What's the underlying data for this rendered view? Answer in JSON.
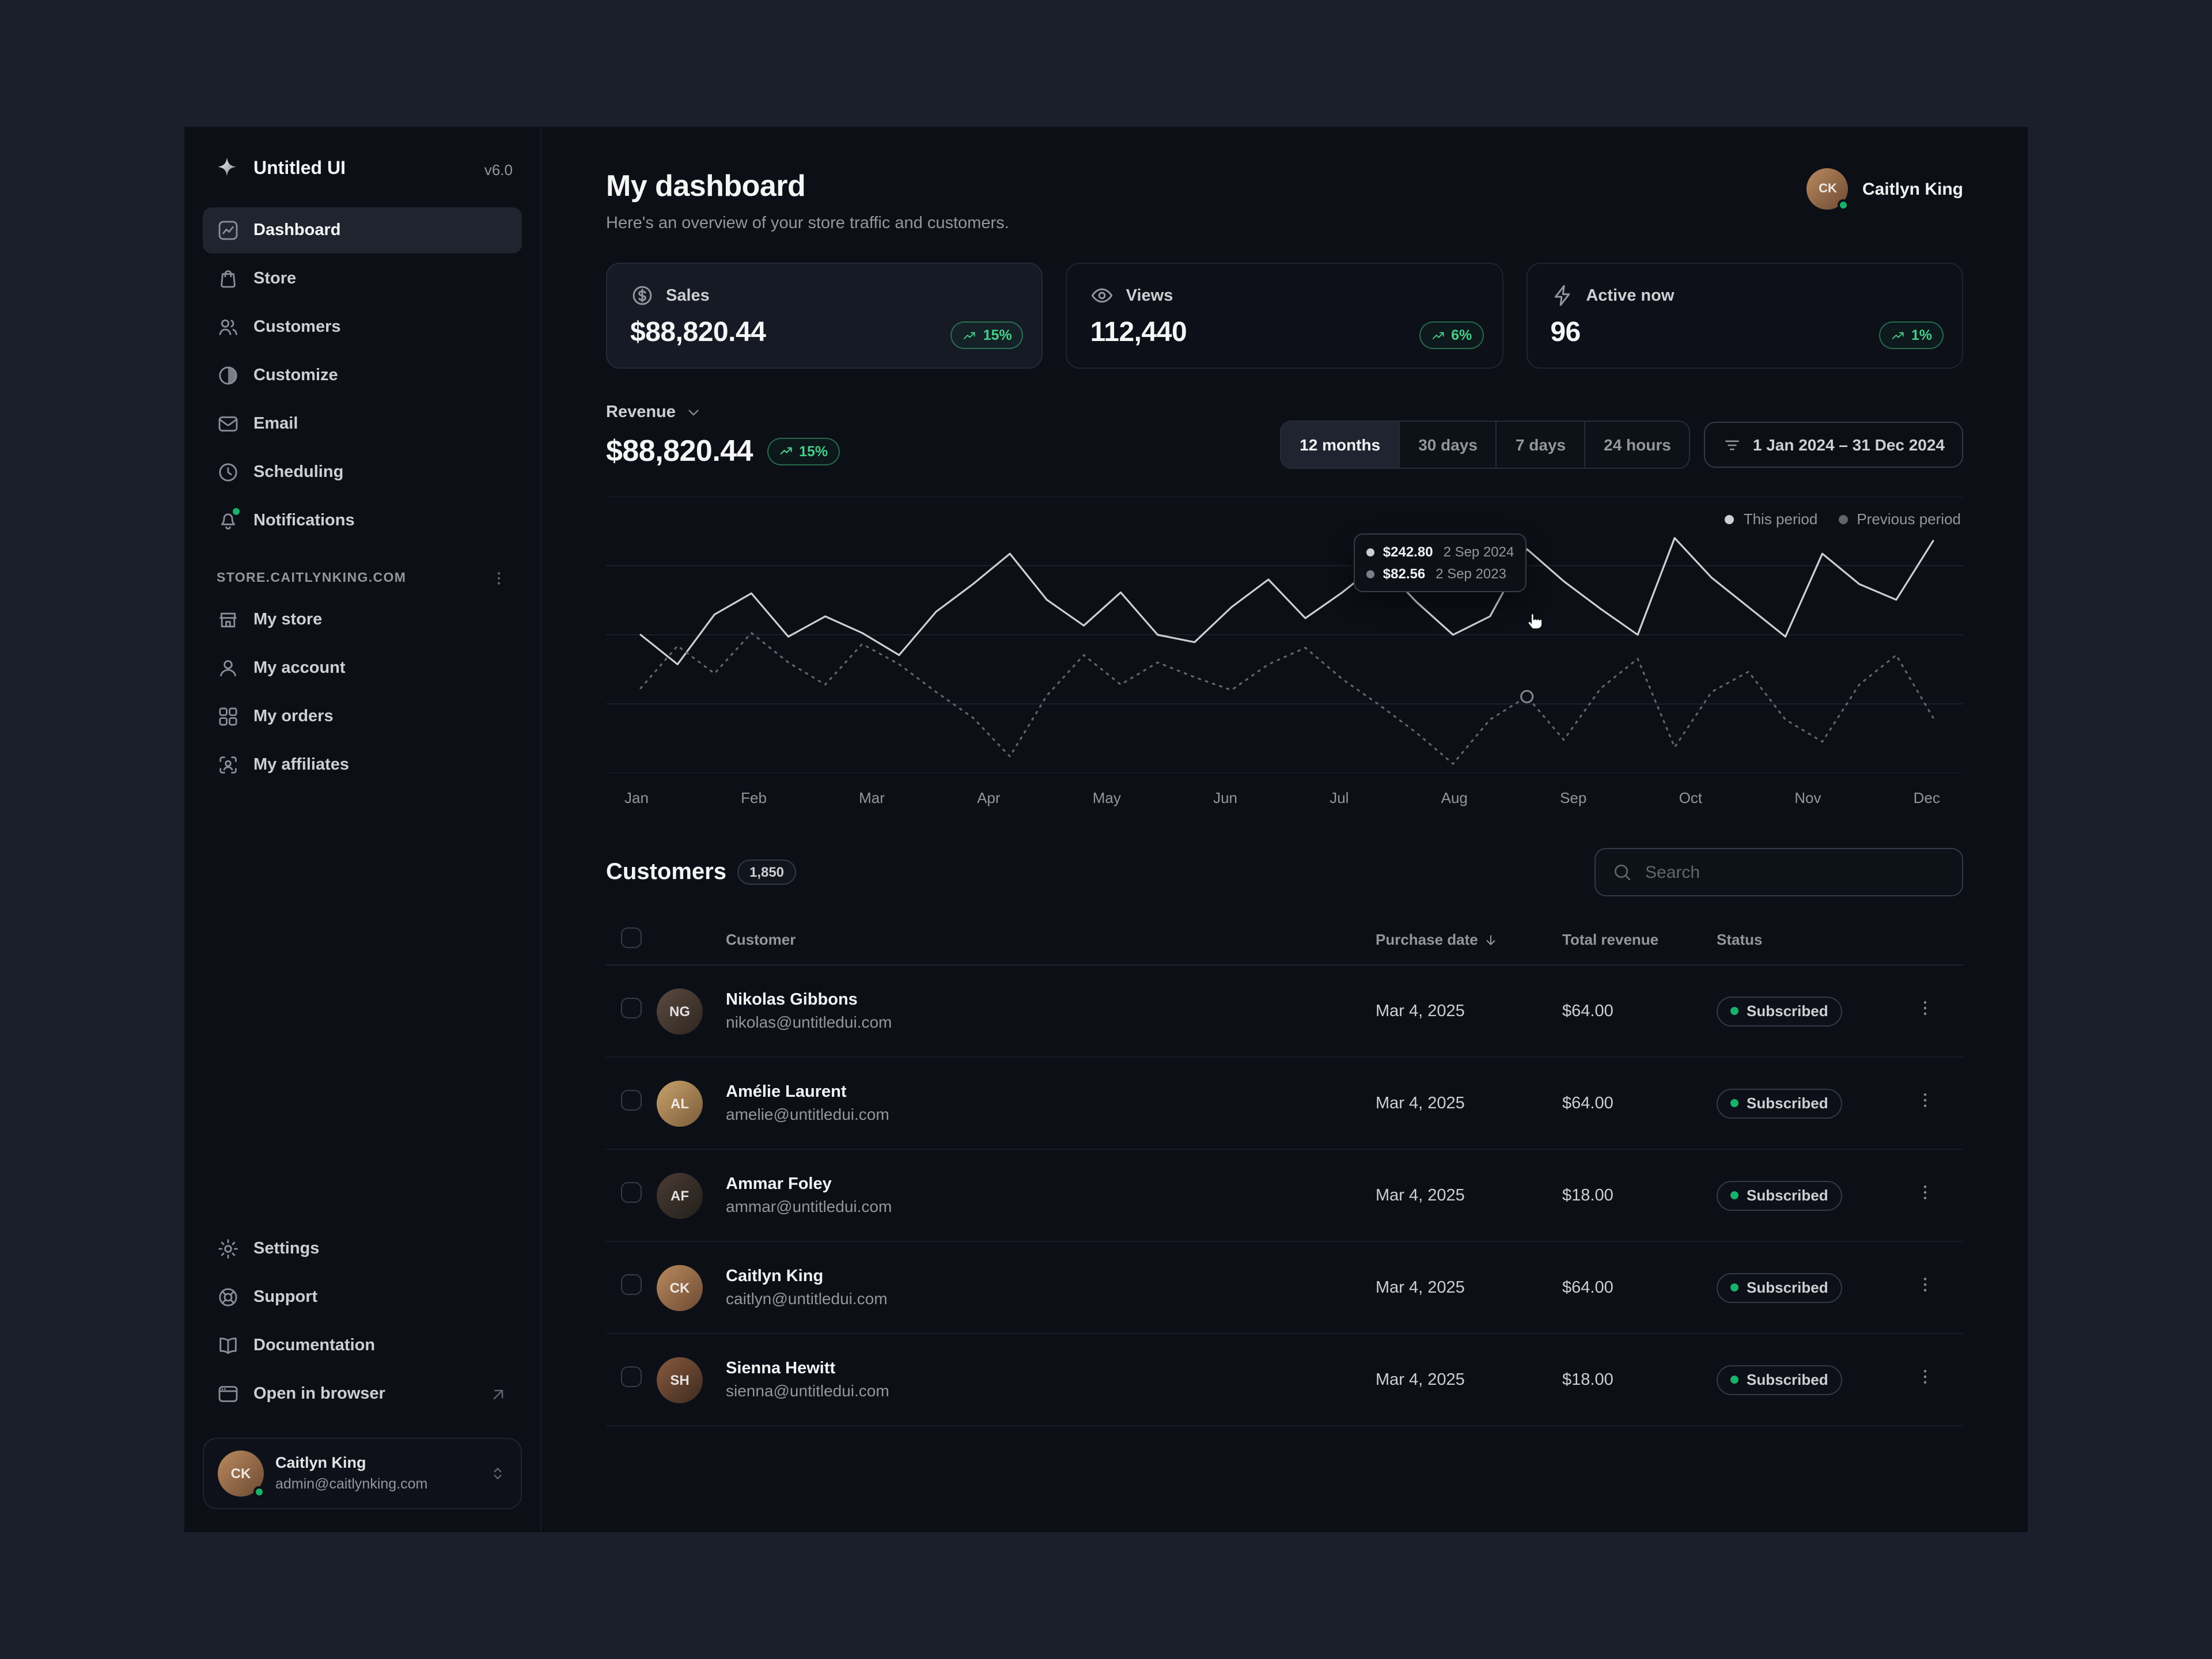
{
  "app": {
    "name": "Untitled UI",
    "version": "v6.0"
  },
  "sidebar": {
    "nav": [
      {
        "label": "Dashboard",
        "icon": "bar-chart-square",
        "active": true
      },
      {
        "label": "Store",
        "icon": "shopping-bag"
      },
      {
        "label": "Customers",
        "icon": "users"
      },
      {
        "label": "Customize",
        "icon": "contrast"
      },
      {
        "label": "Email",
        "icon": "mail"
      },
      {
        "label": "Scheduling",
        "icon": "clock"
      },
      {
        "label": "Notifications",
        "icon": "bell",
        "dot": true
      }
    ],
    "store_section_label": "STORE.CAITLYNKING.COM",
    "store_nav": [
      {
        "label": "My store",
        "icon": "storefront"
      },
      {
        "label": "My account",
        "icon": "user"
      },
      {
        "label": "My orders",
        "icon": "grid"
      },
      {
        "label": "My affiliates",
        "icon": "user-scan"
      }
    ],
    "footer_nav": [
      {
        "label": "Settings",
        "icon": "gear"
      },
      {
        "label": "Support",
        "icon": "life-buoy"
      },
      {
        "label": "Documentation",
        "icon": "book-open"
      },
      {
        "label": "Open in browser",
        "icon": "browser",
        "trailing_icon": "external-link"
      }
    ],
    "user": {
      "name": "Caitlyn King",
      "email": "admin@caitlynking.com"
    }
  },
  "header": {
    "title": "My dashboard",
    "subtitle": "Here's an overview of your store traffic and customers.",
    "user_name": "Caitlyn King"
  },
  "stats": [
    {
      "label": "Sales",
      "value": "$88,820.44",
      "change": "15%",
      "icon": "currency-dollar"
    },
    {
      "label": "Views",
      "value": "112,440",
      "change": "6%",
      "icon": "eye"
    },
    {
      "label": "Active now",
      "value": "96",
      "change": "1%",
      "icon": "zap"
    }
  ],
  "revenue": {
    "label": "Revenue",
    "value": "$88,820.44",
    "change": "15%",
    "ranges": [
      "12 months",
      "30 days",
      "7 days",
      "24 hours"
    ],
    "active_range": "12 months",
    "date_range": "1 Jan 2024 – 31 Dec 2024"
  },
  "chart_data": {
    "type": "line",
    "title": "Revenue",
    "x_labels": [
      "Jan",
      "Feb",
      "Mar",
      "Apr",
      "May",
      "Jun",
      "Jul",
      "Aug",
      "Sep",
      "Oct",
      "Nov",
      "Dec"
    ],
    "ylim": [
      0,
      300
    ],
    "grid": true,
    "legend_position": "top-right",
    "legend": [
      "This period",
      "Previous period"
    ],
    "series": [
      {
        "name": "This period",
        "style": "solid",
        "color": "#cecfd2",
        "values": [
          150,
          118,
          172,
          195,
          148,
          170,
          152,
          128,
          175,
          205,
          238,
          188,
          160,
          196,
          150,
          142,
          180,
          210,
          168,
          196,
          228,
          186,
          150,
          170,
          243,
          208,
          178,
          150,
          255,
          212,
          180,
          148,
          238,
          205,
          188,
          252
        ]
      },
      {
        "name": "Previous period",
        "style": "dotted",
        "color": "#61656c",
        "values": [
          92,
          138,
          108,
          152,
          120,
          96,
          140,
          118,
          88,
          60,
          18,
          84,
          128,
          96,
          120,
          104,
          90,
          118,
          136,
          102,
          74,
          44,
          10,
          58,
          83,
          36,
          92,
          124,
          28,
          88,
          110,
          58,
          34,
          96,
          128,
          60
        ]
      }
    ],
    "tooltip": {
      "marker_index": 24,
      "rows": [
        {
          "value": "$242.80",
          "date": "2 Sep 2024"
        },
        {
          "value": "$82.56",
          "date": "2 Sep 2023"
        }
      ]
    }
  },
  "customers": {
    "title": "Customers",
    "count": "1,850",
    "search_placeholder": "Search",
    "columns": [
      "Customer",
      "Purchase date",
      "Total revenue",
      "Status"
    ],
    "sort_column": "Purchase date",
    "rows": [
      {
        "name": "Nikolas Gibbons",
        "email": "nikolas@untitledui.com",
        "date": "Mar 4, 2025",
        "revenue": "$64.00",
        "status": "Subscribed"
      },
      {
        "name": "Amélie Laurent",
        "email": "amelie@untitledui.com",
        "date": "Mar 4, 2025",
        "revenue": "$64.00",
        "status": "Subscribed"
      },
      {
        "name": "Ammar Foley",
        "email": "ammar@untitledui.com",
        "date": "Mar 4, 2025",
        "revenue": "$18.00",
        "status": "Subscribed"
      },
      {
        "name": "Caitlyn King",
        "email": "caitlyn@untitledui.com",
        "date": "Mar 4, 2025",
        "revenue": "$64.00",
        "status": "Subscribed"
      },
      {
        "name": "Sienna Hewitt",
        "email": "sienna@untitledui.com",
        "date": "Mar 4, 2025",
        "revenue": "$18.00",
        "status": "Subscribed"
      }
    ]
  },
  "colors": {
    "accent_green": "#47cd89",
    "status_dot": "#17b26a",
    "line_this_period": "#cecfd2",
    "line_previous_period": "#61656c"
  }
}
